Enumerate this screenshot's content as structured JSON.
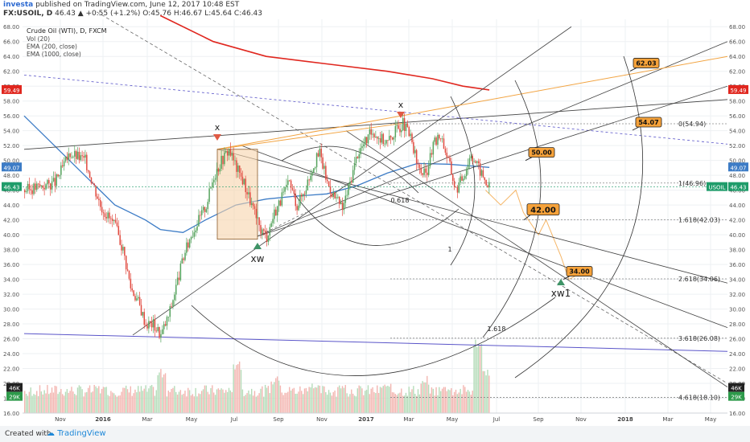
{
  "header": {
    "publisher": "investa",
    "published_text": "published on TradingView.com, June 12, 2017 10:48 EST",
    "symbol": "FX:USOIL, D",
    "ohlc_text": "46.43 ▲ +0.55 (+1.2%) O:45.76 H:46.67 L:45.64 C:46.43"
  },
  "legend": {
    "title": "Crude Oil (WTI), D, FXCM",
    "lines": [
      "Vol (20)",
      "EMA (200, close)",
      "EMA (1000, close)"
    ]
  },
  "footer": {
    "created_with": "Created with",
    "brand": "TradingView"
  },
  "colors": {
    "up": "#56a35d",
    "down": "#e14b40",
    "ema200": "#3d7cc6",
    "ema1000": "#e0271f",
    "fib_orange": "#f2a442",
    "blue_line": "#5a55c9",
    "price_green": "#1f9c6a"
  },
  "chart_data": {
    "type": "candlestick",
    "title": "Crude Oil (WTI), D, FXCM",
    "price_axis": {
      "min": 16,
      "max": 69,
      "step": 2
    },
    "x_labels": [
      "Nov",
      "2016",
      "Mar",
      "May",
      "Jul",
      "Sep",
      "Nov",
      "2017",
      "Mar",
      "May",
      "Jul",
      "Sep",
      "Nov",
      "2018",
      "Mar",
      "May"
    ],
    "axis_badges": [
      {
        "value": "59.49",
        "color": "#e0271f"
      },
      {
        "value": "49.07",
        "color": "#3d7cc6"
      },
      {
        "value": "46.43",
        "color": "#1f9c6a"
      }
    ],
    "symbol_badge": "USOIL",
    "volume_badges": [
      {
        "value": "46K",
        "color": "#222"
      },
      {
        "value": "29K",
        "color": "#2d9a4a"
      }
    ],
    "price_path": [
      [
        0,
        46
      ],
      [
        4,
        47
      ],
      [
        6,
        51
      ],
      [
        8,
        50
      ],
      [
        10,
        44
      ],
      [
        12,
        41
      ],
      [
        13,
        38
      ],
      [
        14,
        33
      ],
      [
        15,
        31
      ],
      [
        16,
        28
      ],
      [
        17,
        28
      ],
      [
        18,
        26.5
      ],
      [
        19,
        29
      ],
      [
        20,
        33
      ],
      [
        21,
        37
      ],
      [
        22,
        40
      ],
      [
        23,
        42
      ],
      [
        24,
        44
      ],
      [
        25,
        48
      ],
      [
        26,
        50
      ],
      [
        27,
        51.5
      ],
      [
        28,
        49
      ],
      [
        29,
        47
      ],
      [
        30,
        44
      ],
      [
        31,
        41
      ],
      [
        32,
        39.8
      ],
      [
        33,
        43
      ],
      [
        34,
        45
      ],
      [
        35,
        47
      ],
      [
        36,
        44
      ],
      [
        37,
        46
      ],
      [
        38,
        49
      ],
      [
        39,
        51
      ],
      [
        40,
        47
      ],
      [
        41,
        45
      ],
      [
        42,
        43.5
      ],
      [
        43,
        47
      ],
      [
        44,
        51
      ],
      [
        45,
        52.5
      ],
      [
        46,
        54
      ],
      [
        47,
        53
      ],
      [
        48,
        52.5
      ],
      [
        49,
        54
      ],
      [
        50,
        55
      ],
      [
        51,
        53
      ],
      [
        52,
        49
      ],
      [
        53,
        48
      ],
      [
        54,
        52
      ],
      [
        55,
        53.5
      ],
      [
        56,
        50
      ],
      [
        57,
        46
      ],
      [
        58,
        48
      ],
      [
        59,
        51
      ],
      [
        60,
        49
      ],
      [
        61,
        47
      ],
      [
        61.5,
        46.4
      ]
    ],
    "projection_path": [
      [
        61,
        46
      ],
      [
        63,
        44
      ],
      [
        65,
        46
      ],
      [
        66,
        43
      ],
      [
        68,
        40
      ],
      [
        69,
        42
      ],
      [
        71,
        37
      ],
      [
        72,
        34
      ],
      [
        74,
        35
      ]
    ],
    "volume_peaks": [
      [
        0,
        19
      ],
      [
        10,
        19.5
      ],
      [
        18,
        22
      ],
      [
        28,
        23
      ],
      [
        33,
        21
      ],
      [
        38,
        20
      ],
      [
        42,
        19.8
      ],
      [
        48,
        20.5
      ],
      [
        53,
        21
      ],
      [
        56,
        19.7
      ],
      [
        60,
        26
      ],
      [
        61,
        22
      ]
    ],
    "ema200": [
      [
        0,
        56
      ],
      [
        4,
        52
      ],
      [
        8,
        48
      ],
      [
        12,
        44
      ],
      [
        16,
        42
      ],
      [
        18,
        40.7
      ],
      [
        21,
        40.3
      ],
      [
        24,
        42
      ],
      [
        28,
        44
      ],
      [
        32,
        44.8
      ],
      [
        36,
        45.2
      ],
      [
        40,
        45.5
      ],
      [
        44,
        46.6
      ],
      [
        48,
        48.3
      ],
      [
        52,
        49.6
      ],
      [
        56,
        49.5
      ],
      [
        60,
        49.2
      ],
      [
        61.5,
        49.07
      ]
    ],
    "ema1000": [
      [
        18,
        69.5
      ],
      [
        25,
        66
      ],
      [
        32,
        64
      ],
      [
        40,
        63
      ],
      [
        48,
        62
      ],
      [
        54,
        61
      ],
      [
        58,
        60
      ],
      [
        61.5,
        59.49
      ]
    ],
    "fib_levels": [
      {
        "label": "0(54.94)",
        "value": 54.94
      },
      {
        "label": "1(46.96)",
        "value": 46.96
      },
      {
        "label": "1.618(42.03)",
        "value": 42.03
      },
      {
        "label": "2.618(34.06)",
        "value": 34.06
      },
      {
        "label": "3.618(26.08)",
        "value": 26.08
      },
      {
        "label": "4.618(18.10)",
        "value": 18.1
      }
    ],
    "callouts": [
      {
        "label": "62.03",
        "value": 62.03,
        "style": "plain"
      },
      {
        "label": "54.07",
        "value": 54.07,
        "style": "plain"
      },
      {
        "label": "50.00",
        "value": 50.0,
        "style": "plain"
      },
      {
        "label": "42.00",
        "value": 42.0,
        "style": "big"
      },
      {
        "label": "34.00",
        "value": 34.0,
        "style": "plain"
      }
    ],
    "annotations": [
      {
        "text": "x",
        "kind": "pivot-high"
      },
      {
        "text": "x",
        "kind": "pivot-high"
      },
      {
        "text": "xw",
        "kind": "pivot-low"
      },
      {
        "text": "xw1",
        "kind": "pivot-low"
      },
      {
        "text": "0.618",
        "kind": "label"
      },
      {
        "text": "1",
        "kind": "label"
      },
      {
        "text": "1.618",
        "kind": "label"
      }
    ]
  }
}
